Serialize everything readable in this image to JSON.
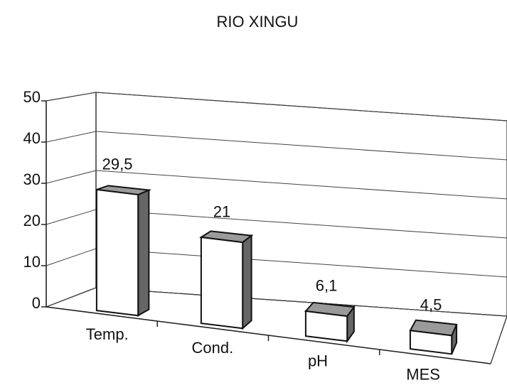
{
  "chart_data": {
    "type": "bar3d",
    "title": "RIO XINGU",
    "categories": [
      "Temp.",
      "Cond.",
      "pH",
      "MES"
    ],
    "values": [
      29.5,
      21,
      6.1,
      4.5
    ],
    "value_labels": [
      "29,5",
      "21",
      "6,1",
      "4,5"
    ],
    "ylim": [
      0,
      50
    ],
    "yticks": [
      0,
      10,
      20,
      30,
      40,
      50
    ],
    "grid": true,
    "color": "#ffffff"
  }
}
